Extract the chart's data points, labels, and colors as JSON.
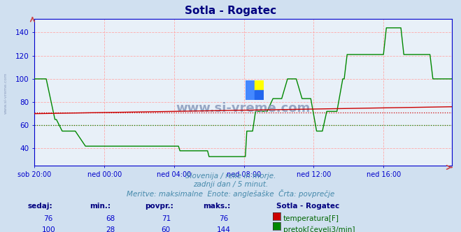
{
  "title": "Sotla - Rogatec",
  "title_color": "#000080",
  "bg_color": "#d0e0f0",
  "plot_bg_color": "#e8f0f8",
  "grid_color": "#ffaaaa",
  "xlabel_ticks": [
    "sob 20:00",
    "ned 00:00",
    "ned 04:00",
    "ned 08:00",
    "ned 12:00",
    "ned 16:00"
  ],
  "ylim": [
    25,
    152
  ],
  "yticks": [
    40,
    60,
    80,
    100,
    120,
    140
  ],
  "n_points": 288,
  "temp_avg": 71,
  "temp_min": 68,
  "temp_max": 76,
  "temp_current": 76,
  "flow_avg": 60,
  "flow_min": 28,
  "flow_max": 144,
  "flow_current": 100,
  "subtitle1": "Slovenija / reke in morje.",
  "subtitle2": "zadnji dan / 5 minut.",
  "subtitle3": "Meritve: maksimalne  Enote: anglešaške  Črta: povprečje",
  "temp_color": "#cc0000",
  "flow_color": "#008800",
  "axis_color": "#0000cc",
  "text_color": "#0000aa",
  "watermark_color": "#8899bb",
  "table_header_color": "#000080",
  "table_value_color": "#0000cc",
  "bottom_text_color": "#006600"
}
